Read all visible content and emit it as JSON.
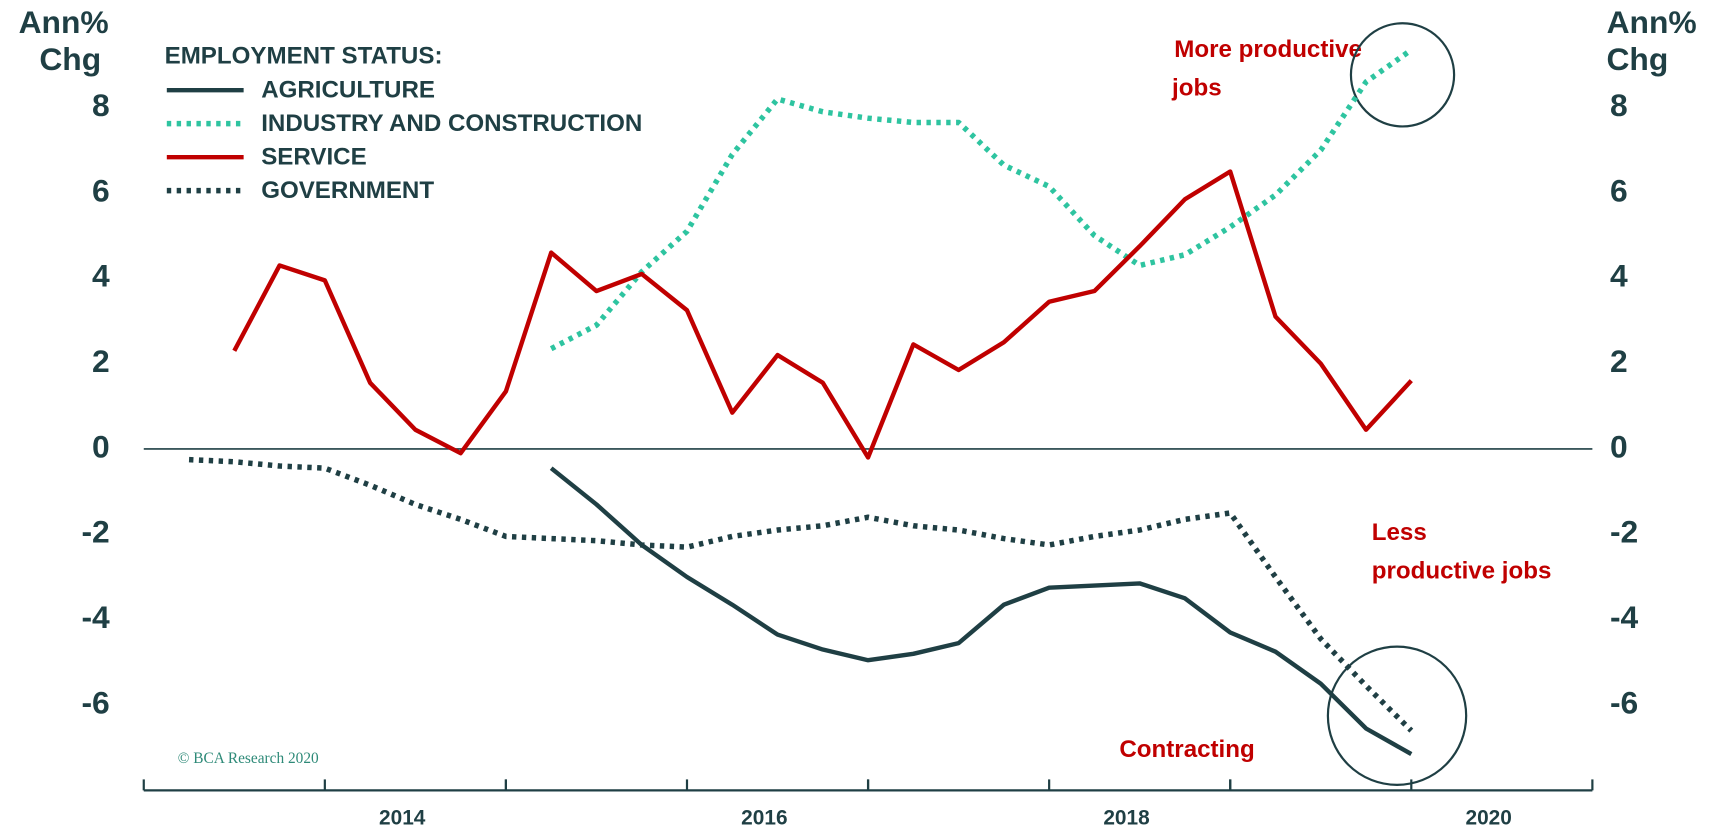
{
  "chart_data": {
    "type": "line",
    "y_label": [
      "Ann%",
      "Chg"
    ],
    "y2_label": [
      "Ann%",
      "Chg"
    ],
    "legend_title": "EMPLOYMENT STATUS:",
    "x": [
      2013.25,
      2013.5,
      2013.75,
      2014.0,
      2014.25,
      2014.5,
      2014.75,
      2015.0,
      2015.25,
      2015.5,
      2015.75,
      2016.0,
      2016.25,
      2016.5,
      2016.75,
      2017.0,
      2017.25,
      2017.5,
      2017.75,
      2018.0,
      2018.25,
      2018.5,
      2018.75,
      2019.0,
      2019.25,
      2019.5,
      2019.75,
      2020.0
    ],
    "series": [
      {
        "name": "AGRICULTURE",
        "color": "#1f3f44",
        "style": "solid",
        "values": [
          null,
          null,
          null,
          null,
          null,
          null,
          null,
          null,
          -0.45,
          -1.3,
          -2.25,
          -3.0,
          -3.65,
          -4.35,
          -4.7,
          -4.95,
          -4.8,
          -4.55,
          -3.65,
          -3.25,
          -3.2,
          -3.15,
          -3.5,
          -4.3,
          -4.75,
          -5.5,
          -6.55,
          -7.15
        ]
      },
      {
        "name": "INDUSTRY AND CONSTRUCTION",
        "color": "#2ec4a0",
        "style": "dotted",
        "values": [
          null,
          null,
          null,
          null,
          null,
          null,
          null,
          null,
          2.35,
          2.9,
          4.15,
          5.1,
          6.9,
          8.2,
          7.9,
          7.75,
          7.65,
          7.65,
          6.65,
          6.15,
          5.0,
          4.3,
          4.55,
          5.2,
          5.95,
          7.0,
          8.6,
          9.35
        ]
      },
      {
        "name": "SERVICE",
        "color": "#c00000",
        "style": "solid",
        "values": [
          null,
          2.3,
          4.3,
          3.95,
          1.55,
          0.45,
          -0.1,
          1.35,
          4.6,
          3.7,
          4.1,
          3.25,
          0.85,
          2.2,
          1.55,
          -0.2,
          2.45,
          1.85,
          2.5,
          3.45,
          3.7,
          4.75,
          5.85,
          6.5,
          3.1,
          2.0,
          0.45,
          1.6
        ]
      },
      {
        "name": "GOVERNMENT",
        "color": "#1f3f44",
        "style": "dotted",
        "values": [
          -0.25,
          -0.3,
          -0.4,
          -0.45,
          -0.85,
          -1.3,
          -1.65,
          -2.05,
          -2.1,
          -2.15,
          -2.25,
          -2.3,
          -2.05,
          -1.9,
          -1.8,
          -1.6,
          -1.8,
          -1.9,
          -2.1,
          -2.25,
          -2.05,
          -1.9,
          -1.65,
          -1.5,
          -3.0,
          -4.45,
          -5.55,
          -6.6
        ]
      }
    ],
    "xlim": [
      2013,
      2021
    ],
    "xticks": [
      2014,
      2016,
      2018,
      2020
    ],
    "ylim": [
      -8,
      10
    ],
    "yticks": [
      -6,
      -4,
      -2,
      0,
      2,
      4,
      6,
      8
    ],
    "annotations": [
      {
        "lines": [
          "More productive",
          "jobs"
        ]
      },
      {
        "lines": [
          "Less",
          "productive jobs"
        ]
      },
      {
        "lines": [
          "Contracting"
        ]
      }
    ],
    "source": "© BCA Research 2020"
  }
}
